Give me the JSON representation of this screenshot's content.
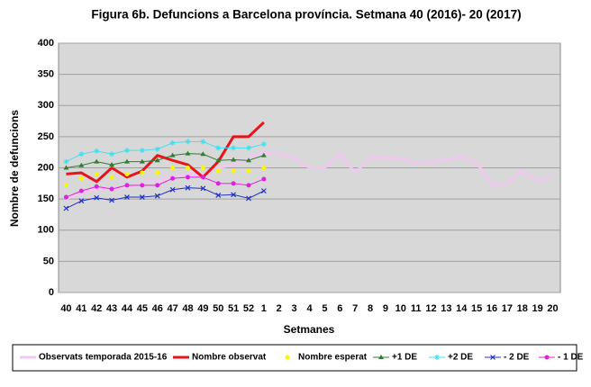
{
  "chart_data": {
    "type": "line",
    "title": "Figura 6b. Defuncions a Barcelona província. Setmana 40 (2016)- 20 (2017)",
    "x_label": "Setmanes",
    "y_label": "Nombre de defuncions",
    "categories": [
      "40",
      "41",
      "42",
      "43",
      "44",
      "45",
      "46",
      "47",
      "48",
      "49",
      "50",
      "51",
      "52",
      "1",
      "2",
      "3",
      "4",
      "5",
      "6",
      "7",
      "8",
      "9",
      "10",
      "11",
      "12",
      "13",
      "14",
      "15",
      "16",
      "17",
      "18",
      "19",
      "20"
    ],
    "ylim": [
      0,
      400
    ],
    "yticks": [
      0,
      50,
      100,
      150,
      200,
      250,
      300,
      350,
      400
    ],
    "grid": true,
    "legend": "bottom",
    "series": [
      {
        "name": "Observats temporada 2015-16",
        "color": "#f0c8f0",
        "width": 3,
        "marker": "none",
        "values": [
          150,
          160,
          165,
          165,
          170,
          175,
          180,
          185,
          190,
          190,
          200,
          205,
          215,
          225,
          222,
          215,
          200,
          200,
          223,
          192,
          217,
          216,
          215,
          208,
          210,
          213,
          217,
          208,
          173,
          174,
          195,
          179,
          187
        ]
      },
      {
        "name": "Nombre observat",
        "color": "#e8141c",
        "width": 3,
        "marker": "none",
        "values": [
          190,
          192,
          178,
          200,
          185,
          195,
          220,
          212,
          205,
          185,
          210,
          250,
          250,
          273,
          null,
          null,
          null,
          null,
          null,
          null,
          null,
          null,
          null,
          null,
          null,
          null,
          null,
          null,
          null,
          null,
          null,
          null,
          null
        ]
      },
      {
        "name": "Nombre esperat",
        "color": "#f8f800",
        "width": 0,
        "marker": "circle",
        "values": [
          172,
          183,
          190,
          185,
          190,
          192,
          192,
          200,
          200,
          200,
          195,
          195,
          195,
          200,
          null,
          null,
          null,
          null,
          null,
          null,
          null,
          null,
          null,
          null,
          null,
          null,
          null,
          null,
          null,
          null,
          null,
          null,
          null
        ]
      },
      {
        "name": "+1 DE",
        "color": "#2e7d32",
        "width": 1,
        "marker": "triangle",
        "values": [
          200,
          204,
          210,
          205,
          210,
          210,
          212,
          220,
          223,
          222,
          212,
          213,
          212,
          220,
          null,
          null,
          null,
          null,
          null,
          null,
          null,
          null,
          null,
          null,
          null,
          null,
          null,
          null,
          null,
          null,
          null,
          null,
          null
        ]
      },
      {
        "name": "+2 DE",
        "color": "#40e0f0",
        "width": 1,
        "marker": "star",
        "values": [
          210,
          222,
          227,
          222,
          228,
          228,
          230,
          240,
          242,
          242,
          232,
          232,
          232,
          238,
          null,
          null,
          null,
          null,
          null,
          null,
          null,
          null,
          null,
          null,
          null,
          null,
          null,
          null,
          null,
          null,
          null,
          null,
          null
        ]
      },
      {
        "name": "- 2 DE",
        "color": "#2030c0",
        "width": 1,
        "marker": "x",
        "values": [
          135,
          147,
          152,
          148,
          153,
          153,
          155,
          165,
          168,
          167,
          156,
          157,
          151,
          163,
          null,
          null,
          null,
          null,
          null,
          null,
          null,
          null,
          null,
          null,
          null,
          null,
          null,
          null,
          null,
          null,
          null,
          null,
          null
        ]
      },
      {
        "name": "- 1 DE",
        "color": "#e020e0",
        "width": 1,
        "marker": "circle",
        "values": [
          153,
          163,
          170,
          166,
          172,
          172,
          172,
          183,
          185,
          185,
          175,
          175,
          172,
          182,
          null,
          null,
          null,
          null,
          null,
          null,
          null,
          null,
          null,
          null,
          null,
          null,
          null,
          null,
          null,
          null,
          null,
          null,
          null
        ]
      }
    ]
  }
}
